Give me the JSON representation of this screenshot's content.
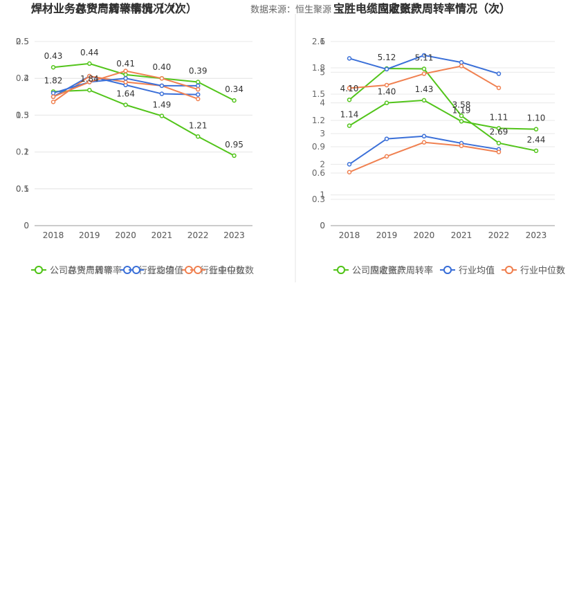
{
  "source_text": "数据来源：恒生聚源",
  "chart_data": [
    {
      "type": "line",
      "title": "焊材业务存货周转率情况（次）",
      "categories": [
        "2018",
        "2019",
        "2020",
        "2021",
        "2022",
        "2023"
      ],
      "ylim": [
        0,
        2.5
      ],
      "yticks": [
        "0",
        "0.5",
        "1",
        "1.5",
        "2",
        "2.5"
      ],
      "series": [
        {
          "name": "公司存货周转率",
          "color": "#52c41a",
          "values": [
            1.82,
            1.84,
            1.64,
            1.49,
            1.21,
            0.95
          ],
          "labels": [
            "1.82",
            "1.84",
            "1.64",
            "1.49",
            "1.21",
            "0.95"
          ]
        },
        {
          "name": "行业均值",
          "color": "#3a6fd8",
          "values": [
            1.75,
            2.03,
            1.91,
            1.79,
            1.78,
            null
          ]
        },
        {
          "name": "行业中位数",
          "color": "#f08050",
          "values": [
            1.68,
            2.03,
            1.95,
            1.9,
            1.72,
            null
          ]
        }
      ],
      "legend": [
        "公司存货周转率",
        "行业均值",
        "行业中位数"
      ],
      "grid": true
    },
    {
      "type": "line",
      "title": "宝胜电缆固定资产周转率情况（次）",
      "categories": [
        "2018",
        "2019",
        "2020",
        "2021",
        "2022",
        "2023"
      ],
      "ylim": [
        0,
        6
      ],
      "yticks": [
        "0",
        "1",
        "2",
        "3",
        "4",
        "5",
        "6"
      ],
      "series": [
        {
          "name": "公司固定资产周转率",
          "color": "#52c41a",
          "values": [
            4.1,
            5.12,
            5.11,
            3.58,
            2.69,
            2.44
          ],
          "labels": [
            "4.10",
            "5.12",
            "5.11",
            "3.58",
            "2.69",
            "2.44"
          ]
        },
        {
          "name": "行业均值",
          "color": "#3a6fd8",
          "values": [
            5.45,
            5.1,
            5.55,
            5.32,
            4.95,
            null
          ]
        },
        {
          "name": "行业中位数",
          "color": "#f08050",
          "values": [
            4.48,
            4.58,
            4.95,
            5.2,
            4.49,
            null
          ]
        }
      ],
      "legend": [
        "公司固定资产周转率",
        "行业均值",
        "行业中位数"
      ],
      "grid": true
    },
    {
      "type": "line",
      "title": "焊材业务总资产周转率情况（次）",
      "categories": [
        "2018",
        "2019",
        "2020",
        "2021",
        "2022",
        "2023"
      ],
      "ylim": [
        0,
        0.5
      ],
      "yticks": [
        "0",
        "0.1",
        "0.2",
        "0.3",
        "0.4",
        "0.5"
      ],
      "series": [
        {
          "name": "公司总资产周转率",
          "color": "#52c41a",
          "values": [
            0.43,
            0.44,
            0.41,
            0.4,
            0.39,
            0.34
          ],
          "labels": [
            "0.43",
            "0.44",
            "0.41",
            "0.40",
            "0.39",
            "0.34"
          ]
        },
        {
          "name": "行业均值",
          "color": "#3a6fd8",
          "values": [
            0.36,
            0.39,
            0.4,
            0.38,
            0.38,
            null
          ]
        },
        {
          "name": "行业中位数",
          "color": "#f08050",
          "values": [
            0.35,
            0.39,
            0.42,
            0.4,
            0.37,
            null
          ]
        }
      ],
      "legend": [
        "公司总资产周转率",
        "行业均值",
        "行业中位数"
      ],
      "grid": true
    },
    {
      "type": "line",
      "title": "宝胜电缆应收账款周转率情况（次）",
      "categories": [
        "2018",
        "2019",
        "2020",
        "2021",
        "2022",
        "2023"
      ],
      "ylim": [
        0,
        2.1
      ],
      "yticks": [
        "0",
        "0.3",
        "0.6",
        "0.9",
        "1.2",
        "1.5",
        "1.8",
        "2.1"
      ],
      "series": [
        {
          "name": "公司应收账款周转率",
          "color": "#52c41a",
          "values": [
            1.14,
            1.4,
            1.43,
            1.19,
            1.11,
            1.1
          ],
          "labels": [
            "1.14",
            "1.40",
            "1.43",
            "1.19",
            "1.11",
            "1.10"
          ]
        },
        {
          "name": "行业均值",
          "color": "#3a6fd8",
          "values": [
            0.7,
            0.99,
            1.02,
            0.94,
            0.87,
            null
          ]
        },
        {
          "name": "行业中位数",
          "color": "#f08050",
          "values": [
            0.61,
            0.79,
            0.95,
            0.91,
            0.84,
            null
          ]
        }
      ],
      "legend": [
        "公司应收账款周转率",
        "行业均值",
        "行业中位数"
      ],
      "grid": true
    }
  ]
}
